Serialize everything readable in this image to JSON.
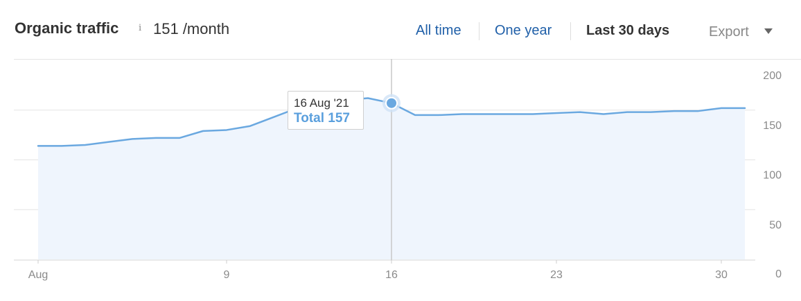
{
  "header": {
    "title": "Organic traffic",
    "info_icon": "i",
    "info_icon_name": "info-icon",
    "traffic_value": "151 /month",
    "ranges": [
      {
        "label": "All time",
        "active": false
      },
      {
        "label": "One year",
        "active": false
      },
      {
        "label": "Last 30 days",
        "active": true
      }
    ],
    "export_label": "Export",
    "export_icon": "caret-down-icon"
  },
  "colors": {
    "line": "#6aa8e0",
    "area_fill": "#eff5fd",
    "grid": "#e4e4e4",
    "link": "#1f5fa8",
    "tooltip_total": "#5a9fdd"
  },
  "tooltip": {
    "date": "16 Aug '21",
    "total_label": "Total 157",
    "x_day": 16,
    "value": 157
  },
  "chart_data": {
    "type": "area",
    "x": [
      1,
      2,
      3,
      4,
      5,
      6,
      7,
      8,
      9,
      10,
      11,
      12,
      13,
      14,
      15,
      16,
      17,
      18,
      19,
      20,
      21,
      22,
      23,
      24,
      25,
      26,
      27,
      28,
      29,
      30,
      31
    ],
    "values": [
      114,
      114,
      115,
      118,
      121,
      122,
      122,
      129,
      130,
      134,
      143,
      152,
      157,
      160,
      162,
      157,
      145,
      145,
      146,
      146,
      146,
      146,
      147,
      148,
      146,
      148,
      148,
      149,
      149,
      152,
      152
    ],
    "x_tick_labels": [
      {
        "x": 1,
        "label": "Aug"
      },
      {
        "x": 9,
        "label": "9"
      },
      {
        "x": 16,
        "label": "16"
      },
      {
        "x": 23,
        "label": "23"
      },
      {
        "x": 30,
        "label": "30"
      }
    ],
    "y_ticks": [
      0,
      50,
      100,
      150,
      200
    ],
    "ylim": [
      0,
      200
    ],
    "xlim": [
      1,
      31
    ],
    "grid": true,
    "highlight_x": 16
  }
}
